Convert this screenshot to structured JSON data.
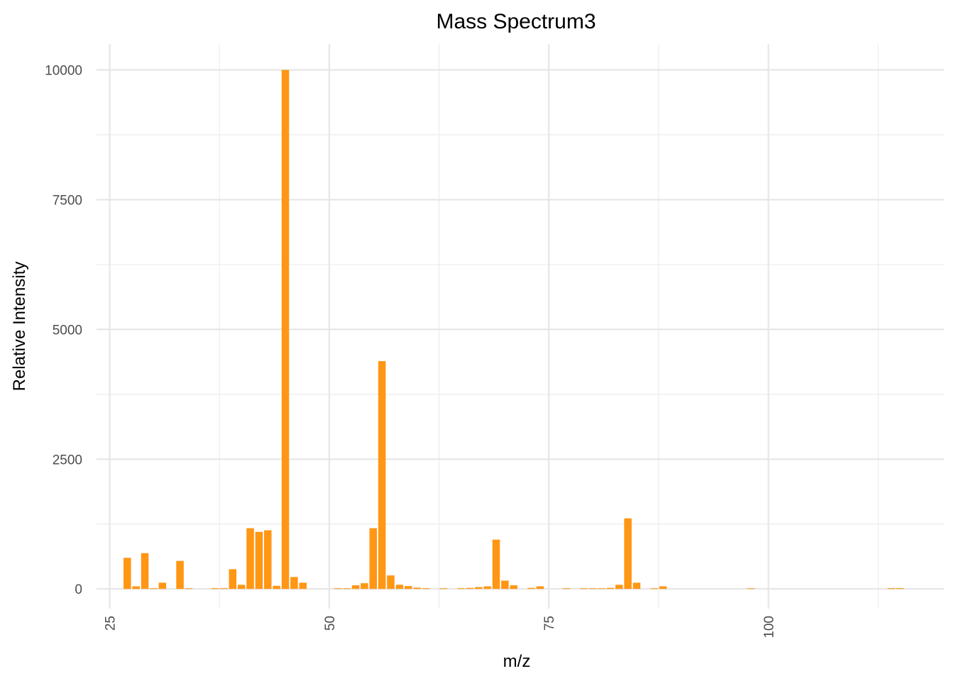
{
  "chart_data": {
    "type": "bar",
    "title": "Mass Spectrum3",
    "xlabel": "m/z",
    "ylabel": "Relative Intensity",
    "xlim": [
      23.5,
      120
    ],
    "ylim": [
      -380,
      10500
    ],
    "x_ticks": [
      25,
      50,
      75,
      100
    ],
    "y_ticks": [
      0,
      2500,
      5000,
      7500,
      10000
    ],
    "grid": true,
    "bar_color": "#FF9614",
    "x": [
      27,
      28,
      29,
      30,
      31,
      33,
      34,
      37,
      38,
      39,
      40,
      41,
      42,
      43,
      44,
      45,
      46,
      47,
      51,
      52,
      53,
      54,
      55,
      56,
      57,
      58,
      59,
      60,
      61,
      63,
      65,
      66,
      67,
      68,
      69,
      70,
      71,
      73,
      74,
      77,
      79,
      80,
      81,
      82,
      83,
      84,
      85,
      87,
      88,
      98,
      114,
      115
    ],
    "values": [
      600,
      50,
      690,
      15,
      120,
      540,
      10,
      15,
      15,
      380,
      80,
      1170,
      1100,
      1130,
      60,
      10000,
      230,
      120,
      10,
      10,
      70,
      110,
      1170,
      4390,
      260,
      80,
      55,
      25,
      15,
      10,
      10,
      20,
      35,
      50,
      950,
      160,
      70,
      20,
      50,
      10,
      10,
      10,
      10,
      20,
      80,
      1360,
      120,
      10,
      50,
      10,
      15,
      15
    ]
  }
}
